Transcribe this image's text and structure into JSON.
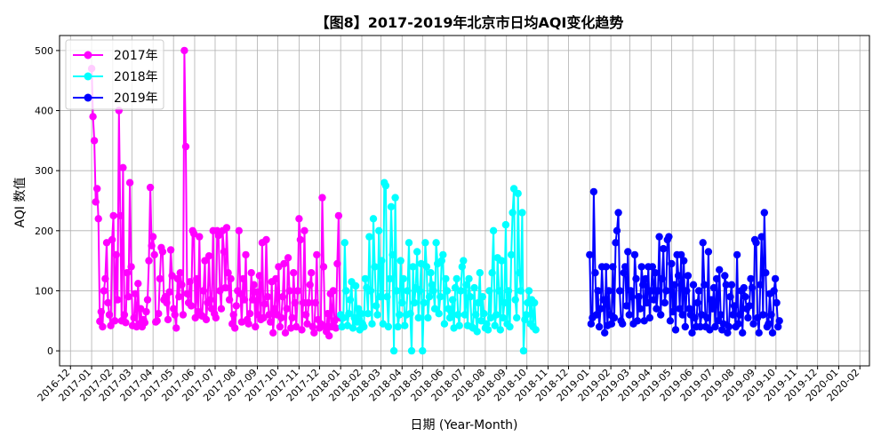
{
  "chart_data": {
    "type": "line",
    "title": "【图8】2017-2019年北京市日均AQI变化趋势",
    "xlabel": "日期 (Year-Month)",
    "ylabel": "AQI 数值",
    "ylim": [
      -25,
      525
    ],
    "yticks": [
      0,
      100,
      200,
      300,
      400,
      500
    ],
    "xlim": [
      "2016-11-15",
      "2020-02-15"
    ],
    "xticks": [
      "2016-12",
      "2017-01",
      "2017-02",
      "2017-03",
      "2017-04",
      "2017-05",
      "2017-06",
      "2017-07",
      "2017-08",
      "2017-09",
      "2017-10",
      "2017-11",
      "2017-12",
      "2018-01",
      "2018-02",
      "2018-03",
      "2018-04",
      "2018-05",
      "2018-06",
      "2018-07",
      "2018-08",
      "2018-09",
      "2018-10",
      "2018-11",
      "2018-12",
      "2019-01",
      "2019-02",
      "2019-03",
      "2019-04",
      "2019-05",
      "2019-06",
      "2019-07",
      "2019-08",
      "2019-09",
      "2019-10",
      "2019-11",
      "2019-12",
      "2020-01",
      "2020-02"
    ],
    "grid": true,
    "legend_position": "top-left",
    "series": [
      {
        "name": "2017年",
        "color": "#ff00ff",
        "start": "2017-01-01",
        "step_days": 2,
        "values": [
          470,
          390,
          350,
          248,
          270,
          220,
          49,
          65,
          40,
          100,
          120,
          180,
          80,
          60,
          42,
          185,
          225,
          50,
          160,
          85,
          400,
          225,
          50,
          305,
          60,
          47,
          130,
          90,
          280,
          140,
          42,
          55,
          95,
          40,
          112,
          45,
          70,
          40,
          52,
          47,
          65,
          85,
          150,
          272,
          175,
          190,
          160,
          48,
          50,
          62,
          120,
          172,
          165,
          85,
          90,
          80,
          52,
          98,
          168,
          125,
          70,
          60,
          38,
          120,
          90,
          130,
          110,
          60,
          500,
          340,
          95,
          80,
          115,
          75,
          200,
          195,
          55,
          120,
          65,
          190,
          60,
          58,
          100,
          150,
          52,
          80,
          158,
          85,
          70,
          200,
          62,
          55,
          200,
          192,
          100,
          70,
          200,
          165,
          105,
          205,
          130,
          85,
          120,
          45,
          60,
          38,
          75,
          100,
          200,
          95,
          48,
          120,
          85,
          160,
          52,
          45,
          62,
          130,
          85,
          110,
          40,
          98,
          60,
          125,
          52,
          180,
          55,
          78,
          185,
          90,
          60,
          48,
          115,
          30,
          70,
          120,
          60,
          140,
          40,
          55,
          90,
          145,
          30,
          70,
          155,
          100,
          38,
          55,
          130,
          80,
          40,
          100,
          220,
          185,
          35,
          80,
          200,
          60,
          45,
          80,
          110,
          130,
          40,
          30,
          80,
          160,
          52,
          38,
          45,
          255,
          140,
          40,
          32,
          62,
          25,
          95,
          40,
          100,
          50,
          38,
          145,
          225,
          55
        ]
      },
      {
        "name": "2018年",
        "color": "#00ffff",
        "start": "2018-01-01",
        "step_days": 2,
        "values": [
          60,
          40,
          55,
          180,
          100,
          42,
          62,
          85,
          115,
          38,
          55,
          108,
          48,
          70,
          35,
          62,
          45,
          40,
          120,
          105,
          62,
          190,
          100,
          45,
          220,
          140,
          75,
          60,
          200,
          90,
          150,
          45,
          280,
          275,
          90,
          40,
          120,
          240,
          160,
          0,
          255,
          100,
          40,
          60,
          150,
          80,
          120,
          42,
          60,
          100,
          180,
          62,
          0,
          140,
          80,
          105,
          165,
          55,
          100,
          145,
          0,
          80,
          180,
          140,
          55,
          90,
          130,
          110,
          100,
          70,
          180,
          145,
          62,
          90,
          150,
          160,
          45,
          120,
          100,
          70,
          55,
          65,
          85,
          38,
          105,
          120,
          60,
          42,
          100,
          140,
          150,
          60,
          110,
          42,
          120,
          90,
          40,
          38,
          105,
          60,
          32,
          80,
          130,
          50,
          90,
          62,
          38,
          45,
          35,
          100,
          55,
          130,
          200,
          42,
          60,
          155,
          100,
          35,
          150,
          55,
          80,
          210,
          45,
          100,
          40,
          160,
          230,
          270,
          85,
          55,
          262,
          130,
          100,
          230,
          0,
          52,
          60,
          80,
          100,
          45,
          85,
          40,
          80,
          35
        ]
      },
      {
        "name": "2019年",
        "color": "#0000ff",
        "start": "2019-01-01",
        "step_days": 2,
        "values": [
          160,
          45,
          55,
          265,
          130,
          60,
          100,
          40,
          70,
          140,
          85,
          30,
          140,
          42,
          100,
          60,
          45,
          140,
          55,
          180,
          200,
          230,
          100,
          50,
          45,
          130,
          140,
          75,
          165,
          60,
          100,
          90,
          45,
          160,
          120,
          50,
          90,
          70,
          140,
          110,
          50,
          120,
          80,
          140,
          55,
          100,
          140,
          85,
          130,
          70,
          100,
          190,
          60,
          120,
          170,
          80,
          100,
          185,
          190,
          50,
          145,
          65,
          110,
          35,
          160,
          125,
          70,
          160,
          60,
          150,
          40,
          100,
          125,
          70,
          60,
          30,
          110,
          55,
          40,
          80,
          100,
          40,
          60,
          180,
          110,
          40,
          55,
          165,
          35,
          85,
          70,
          105,
          40,
          120,
          50,
          135,
          60,
          35,
          45,
          125,
          110,
          30,
          40,
          90,
          110,
          60,
          75,
          40,
          160,
          45,
          60,
          100,
          30,
          105,
          90,
          70,
          55,
          75,
          120,
          105,
          45,
          185,
          180,
          55,
          30,
          110,
          190,
          60,
          230,
          130,
          40,
          45,
          95,
          60,
          30,
          100,
          120,
          80,
          40,
          50
        ]
      }
    ]
  }
}
